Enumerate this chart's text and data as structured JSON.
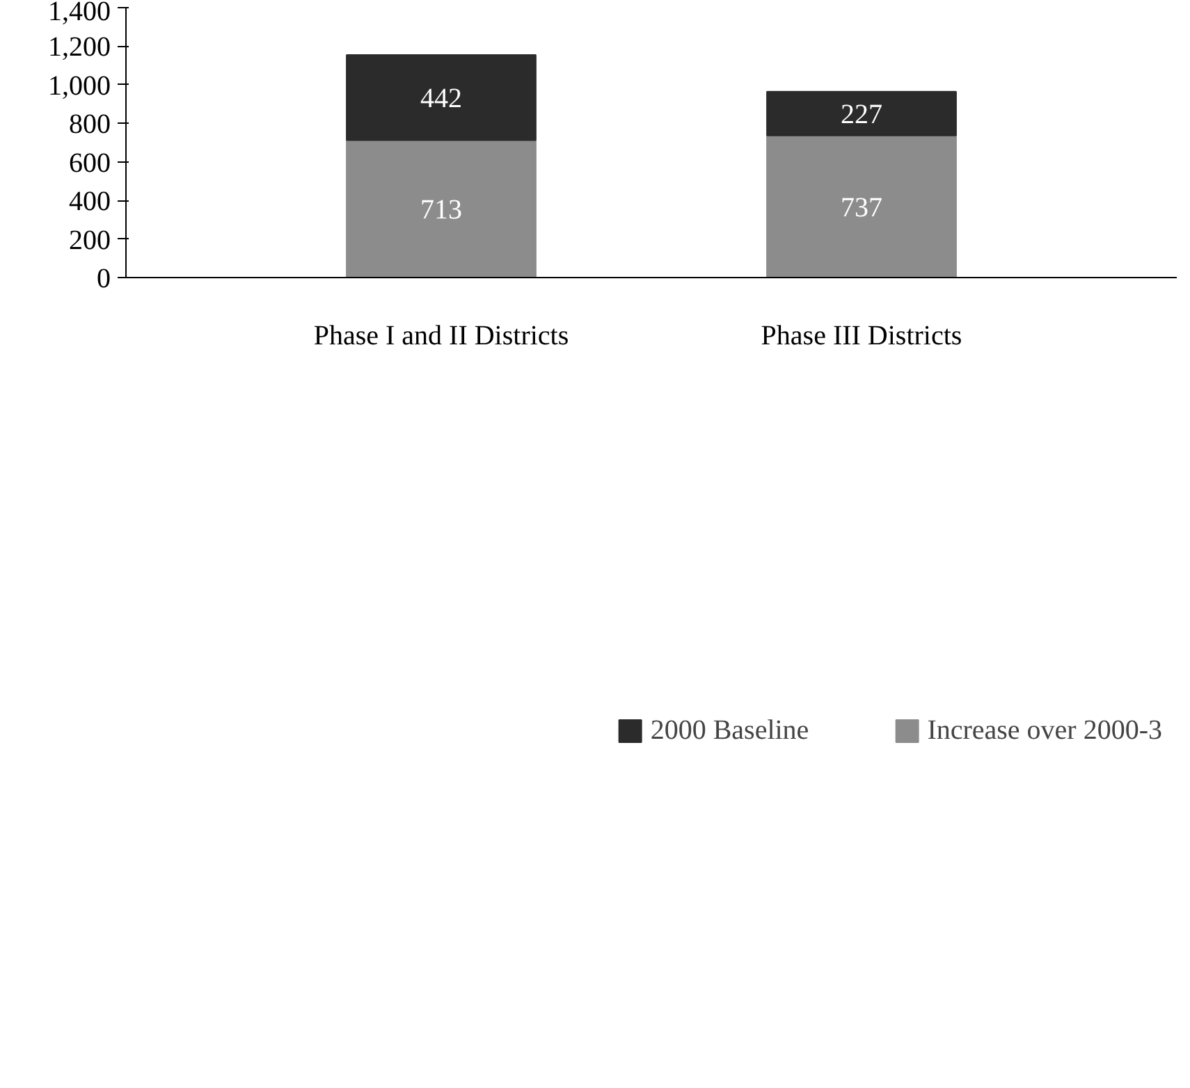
{
  "chart_data": {
    "type": "bar",
    "stacked": true,
    "categories": [
      "Phase I and II Districts",
      "Phase III Districts"
    ],
    "series": [
      {
        "name": "Increase over 2000-3",
        "color": "#8c8c8c",
        "values": [
          713,
          737
        ]
      },
      {
        "name": "2000 Baseline",
        "color": "#2b2b2b",
        "values": [
          442,
          227
        ]
      }
    ],
    "ylim": [
      0,
      1400
    ],
    "yticks": [
      0,
      {
        "value": 200,
        "label": "200"
      },
      {
        "value": 400,
        "label": "400"
      },
      {
        "value": 600,
        "label": "600"
      },
      {
        "value": 800,
        "label": "800"
      },
      {
        "value": 1000,
        "label": "1,000"
      },
      {
        "value": 1200,
        "label": "1,200"
      },
      {
        "value": 1400,
        "label": "1,400"
      }
    ],
    "data_labels": true,
    "grid": false,
    "legend": "bottom"
  }
}
